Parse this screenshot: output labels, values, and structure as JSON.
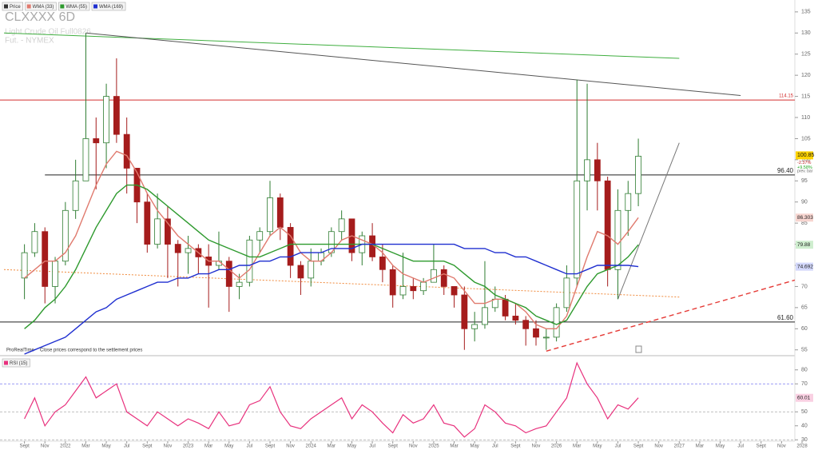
{
  "chart_data": [
    {
      "type": "candlestick",
      "title": "CLXXXX  6D",
      "subtitle": "Light Crude Oil Full0826",
      "exchange": "Fut. - NYMEX",
      "brand": "ProRealTime",
      "note": "Close prices correspond to the settlement prices",
      "name": "Price",
      "up_color": "#2f7d32",
      "down_color": "#a51c1c",
      "x": [
        "2021-09",
        "2021-10",
        "2021-11",
        "2021-12",
        "2022-01",
        "2022-02",
        "2022-03",
        "2022-04",
        "2022-05",
        "2022-06",
        "2022-07",
        "2022-08",
        "2022-09",
        "2022-10",
        "2022-11",
        "2022-12",
        "2023-01",
        "2023-02",
        "2023-03",
        "2023-04",
        "2023-05",
        "2023-06",
        "2023-07",
        "2023-08",
        "2023-09",
        "2023-10",
        "2023-11",
        "2023-12",
        "2024-01",
        "2024-02",
        "2024-03",
        "2024-04",
        "2024-05",
        "2024-06",
        "2024-07",
        "2024-08",
        "2024-09",
        "2024-10",
        "2024-11",
        "2024-12",
        "2025-01",
        "2025-02",
        "2025-03",
        "2025-04",
        "2025-05",
        "2025-06",
        "2025-07",
        "2025-08",
        "2025-09",
        "2025-10",
        "2025-11",
        "2025-12",
        "2026-01",
        "2026-02",
        "2026-03",
        "2026-04",
        "2026-05",
        "2026-06",
        "2026-07",
        "2026-08",
        "2026-09"
      ],
      "open": [
        72,
        78,
        83,
        70,
        76,
        88,
        95,
        105,
        104,
        115,
        106,
        98,
        90,
        80,
        86,
        80,
        78,
        79,
        77,
        75,
        76,
        70,
        71,
        81,
        83,
        91,
        84,
        75,
        72,
        76,
        78,
        83,
        86,
        78,
        82,
        77,
        74,
        68,
        70,
        69,
        71,
        74,
        70,
        68,
        60,
        61,
        65,
        67,
        63,
        62,
        60,
        58,
        58,
        65,
        72,
        95,
        100,
        95,
        74,
        88,
        92
      ],
      "high": [
        80,
        85,
        84,
        77,
        90,
        100,
        130,
        110,
        118,
        124,
        110,
        98,
        92,
        92,
        89,
        81,
        82,
        80,
        80,
        83,
        77,
        73,
        82,
        84,
        95,
        92,
        85,
        76,
        79,
        79,
        84,
        88,
        86,
        83,
        85,
        80,
        75,
        78,
        72,
        72,
        80,
        75,
        70,
        70,
        64,
        76,
        70,
        68,
        66,
        63,
        62,
        60,
        66,
        75,
        119,
        118,
        104,
        96,
        93,
        95,
        105
      ],
      "low": [
        67,
        77,
        66,
        66,
        75,
        86,
        95,
        93,
        98,
        104,
        92,
        85,
        78,
        79,
        72,
        70,
        73,
        73,
        65,
        74,
        64,
        67,
        70,
        78,
        82,
        81,
        72,
        68,
        70,
        75,
        77,
        81,
        76,
        75,
        76,
        71,
        65,
        67,
        67,
        68,
        71,
        68,
        65,
        55,
        57,
        60,
        64,
        62,
        61,
        56,
        56,
        55,
        57,
        64,
        70,
        88,
        88,
        70,
        67,
        82,
        89
      ],
      "close": [
        78,
        83,
        70,
        76,
        88,
        95,
        105,
        104,
        115,
        106,
        98,
        90,
        80,
        86,
        80,
        78,
        79,
        77,
        75,
        76,
        70,
        71,
        81,
        83,
        91,
        84,
        75,
        72,
        76,
        78,
        83,
        86,
        78,
        82,
        77,
        74,
        68,
        70,
        69,
        71,
        74,
        70,
        68,
        60,
        61,
        65,
        67,
        63,
        62,
        60,
        58,
        58,
        65,
        72,
        95,
        100,
        95,
        74,
        88,
        92,
        100.85
      ],
      "price_tag": {
        "change": "-2.37%",
        "change_prev": "+9.58%",
        "note": "prev. bar"
      },
      "overlays": [
        {
          "name": "WMA (33)",
          "color": "#e07a6e",
          "tag_color": "#f7d5d0",
          "values": [
            72,
            74,
            76,
            76,
            78,
            82,
            88,
            94,
            99,
            102,
            101,
            97,
            92,
            88,
            85,
            82,
            80,
            78,
            76,
            76,
            74,
            72,
            74,
            78,
            82,
            84,
            82,
            78,
            76,
            76,
            78,
            81,
            82,
            81,
            80,
            78,
            75,
            73,
            72,
            71,
            72,
            73,
            72,
            69,
            66,
            66,
            67,
            67,
            66,
            64,
            61,
            60,
            60,
            63,
            70,
            77,
            83,
            82,
            80,
            83,
            86.303
          ]
        },
        {
          "name": "WMA (55)",
          "color": "#2e9a2e",
          "tag_color": "#cfeecf",
          "values": [
            60,
            62,
            65,
            67,
            70,
            74,
            79,
            84,
            88,
            92,
            94,
            94,
            93,
            91,
            89,
            87,
            85,
            83,
            81,
            80,
            79,
            78,
            77,
            77,
            78,
            79,
            80,
            80,
            80,
            80,
            80,
            80,
            80,
            80,
            80,
            79,
            78,
            77,
            76,
            76,
            76,
            76,
            75,
            73,
            71,
            70,
            68,
            67,
            66,
            65,
            63,
            62,
            61,
            62,
            66,
            70,
            73,
            74,
            75,
            77,
            79.88
          ]
        },
        {
          "name": "WMA (169)",
          "color": "#1f2fd0",
          "tag_color": "#d3d8fb",
          "values": [
            54,
            55,
            56,
            57,
            58,
            60,
            62,
            64,
            65,
            67,
            68,
            69,
            70,
            71,
            71,
            72,
            72,
            73,
            73,
            74,
            74,
            75,
            75,
            76,
            76,
            77,
            77,
            78,
            78,
            78,
            79,
            79,
            79,
            80,
            80,
            80,
            80,
            80,
            80,
            80,
            80,
            80,
            80,
            79,
            79,
            79,
            78,
            78,
            77,
            77,
            76,
            75,
            74,
            73,
            73,
            74,
            75,
            75,
            75,
            75,
            74.692
          ]
        }
      ],
      "hlines": [
        {
          "value": 114.15,
          "color": "#d32f2f"
        },
        {
          "value": 96.4,
          "label": "96.40",
          "color": "#222222",
          "from": "2021-11"
        },
        {
          "value": 61.6,
          "label": "61.60",
          "color": "#222222"
        }
      ],
      "trendlines": [
        {
          "x": [
            "2021-07",
            "2027-01"
          ],
          "y": [
            130,
            124
          ],
          "color": "#3fae3f",
          "dash": "none"
        },
        {
          "x": [
            "2022-03",
            "2027-07"
          ],
          "y": [
            130,
            115.2
          ],
          "color": "#555555",
          "dash": "none"
        },
        {
          "x": [
            "2025-12",
            "2028-01"
          ],
          "y": [
            54.7,
            72
          ],
          "color": "#e53935",
          "dash": "6,4"
        },
        {
          "x": [
            "2021-07",
            "2027-01"
          ],
          "y": [
            74,
            67.5
          ],
          "color": "#f08a3c",
          "dash": "2,2"
        },
        {
          "x": [
            "2026-07",
            "2027-01"
          ],
          "y": [
            67,
            104
          ],
          "color": "#777777",
          "dash": "none"
        }
      ],
      "ylim": [
        54,
        136.3
      ],
      "yticks": [
        55,
        60,
        65,
        70,
        75,
        80,
        85,
        90,
        95,
        100,
        105,
        110,
        115,
        120,
        125,
        130,
        135
      ],
      "xlim": [
        "2021-07",
        "2028-01"
      ],
      "xticks": [
        {
          "value": "2021-09",
          "label": "Sept"
        },
        {
          "value": "2021-11",
          "label": "Nov"
        },
        {
          "value": "2022-01",
          "label": "2022"
        },
        {
          "value": "2022-03",
          "label": "Mar"
        },
        {
          "value": "2022-05",
          "label": "May"
        },
        {
          "value": "2022-07",
          "label": "Jul"
        },
        {
          "value": "2022-09",
          "label": "Sept"
        },
        {
          "value": "2022-11",
          "label": "Nov"
        },
        {
          "value": "2023-01",
          "label": "2023"
        },
        {
          "value": "2023-03",
          "label": "Mar"
        },
        {
          "value": "2023-05",
          "label": "May"
        },
        {
          "value": "2023-07",
          "label": "Jul"
        },
        {
          "value": "2023-09",
          "label": "Sept"
        },
        {
          "value": "2023-11",
          "label": "Nov"
        },
        {
          "value": "2024-01",
          "label": "2024"
        },
        {
          "value": "2024-03",
          "label": "Mar"
        },
        {
          "value": "2024-05",
          "label": "May"
        },
        {
          "value": "2024-07",
          "label": "Jul"
        },
        {
          "value": "2024-09",
          "label": "Sept"
        },
        {
          "value": "2024-11",
          "label": "Nov"
        },
        {
          "value": "2025-01",
          "label": "2025"
        },
        {
          "value": "2025-03",
          "label": "Mar"
        },
        {
          "value": "2025-05",
          "label": "May"
        },
        {
          "value": "2025-07",
          "label": "Jul"
        },
        {
          "value": "2025-09",
          "label": "Sept"
        },
        {
          "value": "2025-11",
          "label": "Nov"
        },
        {
          "value": "2026-01",
          "label": "2026"
        },
        {
          "value": "2026-03",
          "label": "Mar"
        },
        {
          "value": "2026-05",
          "label": "May"
        },
        {
          "value": "2026-07",
          "label": "Jul"
        },
        {
          "value": "2026-09",
          "label": "Sept"
        },
        {
          "value": "2026-11",
          "label": "Nov"
        },
        {
          "value": "2027-01",
          "label": "2027"
        },
        {
          "value": "2027-03",
          "label": "Mar"
        },
        {
          "value": "2027-05",
          "label": "May"
        },
        {
          "value": "2027-07",
          "label": "Jul"
        },
        {
          "value": "2027-09",
          "label": "Sept"
        },
        {
          "value": "2027-11",
          "label": "Nov"
        },
        {
          "value": "2028-01",
          "label": "2028"
        }
      ]
    },
    {
      "type": "line",
      "name": "RSI (15)",
      "color": "#e8317d",
      "tag_color": "#f9d0e2",
      "values": [
        45,
        60,
        40,
        50,
        55,
        65,
        75,
        60,
        65,
        70,
        50,
        45,
        40,
        50,
        45,
        40,
        45,
        42,
        38,
        50,
        40,
        42,
        55,
        58,
        68,
        50,
        40,
        38,
        45,
        50,
        55,
        60,
        45,
        55,
        50,
        42,
        35,
        48,
        42,
        45,
        55,
        42,
        40,
        32,
        38,
        55,
        50,
        42,
        40,
        35,
        38,
        40,
        50,
        60,
        85,
        70,
        60,
        45,
        55,
        52,
        60.01
      ],
      "ylim": [
        29,
        89
      ],
      "yticks": [
        30,
        40,
        50,
        70,
        80
      ],
      "levels": [
        70,
        50,
        30
      ]
    }
  ]
}
